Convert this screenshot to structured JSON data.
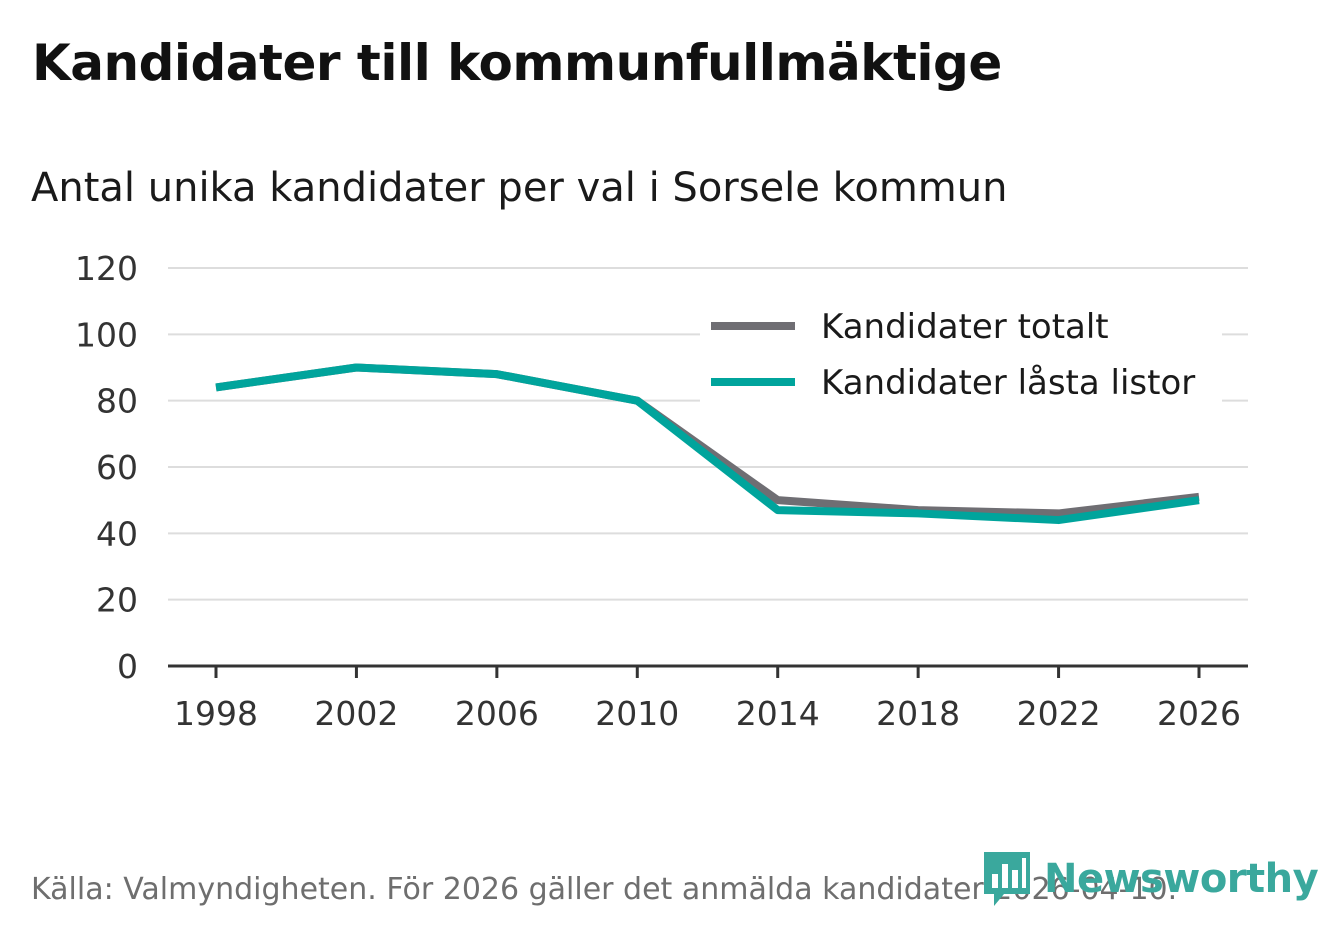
{
  "header": {
    "title": "Kandidater till kommunfullmäktige",
    "subtitle": "Antal unika kandidater per val i Sorsele kommun"
  },
  "footer": {
    "source": "Källa: Valmyndigheten. För 2026 gäller det anmälda kandidater 2026-04-10.",
    "brand": "Newsworthy"
  },
  "icons": {
    "logo": "bar-chart-speech-bubble-icon"
  },
  "colors": {
    "total": "#6f6e73",
    "locked": "#00a49c",
    "grid": "#dddddd",
    "axis": "#333333",
    "brand": "#3aa89d"
  },
  "chart_data": {
    "type": "line",
    "title": "Kandidater till kommunfullmäktige",
    "subtitle": "Antal unika kandidater per val i Sorsele kommun",
    "xlabel": "",
    "ylabel": "",
    "x": [
      1998,
      2002,
      2006,
      2010,
      2014,
      2018,
      2022,
      2026
    ],
    "x_ticks": [
      "1998",
      "2002",
      "2006",
      "2010",
      "2014",
      "2018",
      "2022",
      "2026"
    ],
    "y_ticks": [
      "0",
      "20",
      "40",
      "60",
      "80",
      "100",
      "120"
    ],
    "ylim": [
      0,
      120
    ],
    "grid": true,
    "legend_position": "top-right",
    "series": [
      {
        "name": "Kandidater totalt",
        "color": "#6f6e73",
        "values": [
          84,
          90,
          88,
          80,
          50,
          47,
          46,
          51
        ]
      },
      {
        "name": "Kandidater låsta listor",
        "color": "#00a49c",
        "values": [
          84,
          90,
          88,
          80,
          47,
          46,
          44,
          50
        ]
      }
    ]
  }
}
